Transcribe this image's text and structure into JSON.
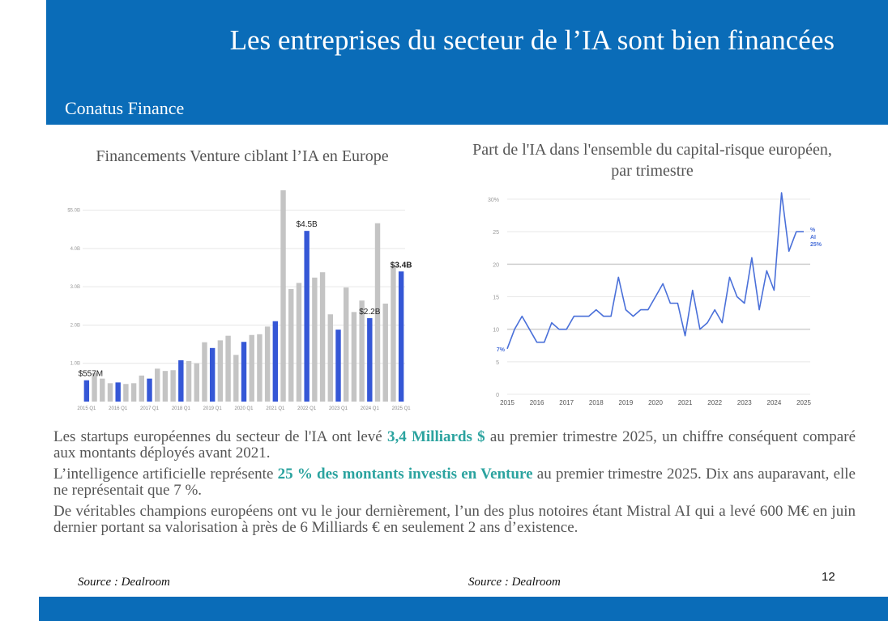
{
  "slide": {
    "title": "Les entreprises du secteur de l’IA sont bien financées",
    "subtitle": "Conatus Finance",
    "page_number": "12"
  },
  "paragraphs": [
    {
      "before": "Les startups européennes du secteur de l'IA ont levé ",
      "highlight": "3,4 Milliards $",
      "after": " au premier trimestre 2025, un chiffre conséquent comparé aux montants déployés avant 2021."
    },
    {
      "before": "L’intelligence artificielle représente ",
      "highlight": "25 % des montants investis en Venture",
      "after": " au premier trimestre 2025. Dix ans auparavant, elle ne représentait que 7 %."
    },
    {
      "before": "De véritables champions européens ont vu le jour dernièrement, l’un des plus notoires étant Mistral AI qui a levé 600 M€ en juin dernier portant sa valorisation à près de 6 Milliards € en seulement 2 ans d’existence.",
      "highlight": "",
      "after": ""
    }
  ],
  "sources": [
    "Source : Dealroom",
    "Source : Dealroom"
  ],
  "colors": {
    "header": "#0a6cb8",
    "highlight": "#2ba39f",
    "bar_q1": "#3557d6",
    "bar_other": "#c4c4c4",
    "line": "#4a70d9"
  },
  "chart_data": [
    {
      "type": "bar",
      "title": "Financements Venture ciblant l’IA en Europe",
      "xlabel": "",
      "ylabel": "",
      "ylim": [
        0,
        5.5
      ],
      "yticks": [
        1.0,
        2.0,
        3.0,
        4.0,
        5.0
      ],
      "ytick_labels": [
        "1.0B",
        "2.0B",
        "3.0B",
        "4.0B",
        "$5.0B"
      ],
      "x_tick_labels": [
        "2015 Q1",
        "2016 Q1",
        "2017 Q1",
        "2018 Q1",
        "2019 Q1",
        "2020 Q1",
        "2021 Q1",
        "2022 Q1",
        "2023 Q1",
        "2024 Q1",
        "2025 Q1"
      ],
      "grid": true,
      "legend": "none",
      "q1_highlighted": true,
      "values": [
        0.557,
        0.75,
        0.6,
        0.48,
        0.5,
        0.46,
        0.48,
        0.68,
        0.6,
        0.86,
        0.8,
        0.82,
        1.08,
        1.06,
        1.0,
        1.55,
        1.4,
        1.6,
        1.72,
        1.22,
        1.56,
        1.74,
        1.76,
        1.96,
        2.1,
        5.52,
        2.94,
        3.1,
        4.46,
        3.24,
        3.38,
        2.28,
        1.88,
        2.98,
        2.34,
        2.64,
        2.18,
        4.66,
        2.56,
        3.52,
        3.4
      ],
      "annotations": [
        {
          "label": "$557M",
          "index": 0,
          "bold": false
        },
        {
          "label": "$4.5B",
          "index": 28,
          "bold": false
        },
        {
          "label": "$2.2B",
          "index": 36,
          "bold": false
        },
        {
          "label": "$3.4B",
          "index": 40,
          "bold": true
        }
      ]
    },
    {
      "type": "line",
      "title": "Part de l'IA dans l'ensemble du capital-risque européen, par trimestre",
      "xlabel": "",
      "ylabel": "",
      "xlim": [
        2015,
        2025
      ],
      "ylim": [
        0,
        30
      ],
      "yticks": [
        0,
        5,
        10,
        15,
        20,
        25,
        30
      ],
      "ytick_labels": [
        "0",
        "5",
        "10",
        "15",
        "20",
        "25",
        "30%"
      ],
      "xticks": [
        2015,
        2016,
        2017,
        2018,
        2019,
        2020,
        2021,
        2022,
        2023,
        2024,
        2025
      ],
      "grid": true,
      "series": [
        {
          "name": "% AI",
          "x": [
            2015.0,
            2015.25,
            2015.5,
            2015.75,
            2016.0,
            2016.25,
            2016.5,
            2016.75,
            2017.0,
            2017.25,
            2017.5,
            2017.75,
            2018.0,
            2018.25,
            2018.5,
            2018.75,
            2019.0,
            2019.25,
            2019.5,
            2019.75,
            2020.0,
            2020.25,
            2020.5,
            2020.75,
            2021.0,
            2021.25,
            2021.5,
            2021.75,
            2022.0,
            2022.25,
            2022.5,
            2022.75,
            2023.0,
            2023.25,
            2023.5,
            2023.75,
            2024.0,
            2024.25,
            2024.5,
            2024.75,
            2025.0
          ],
          "values": [
            7,
            10,
            12,
            10,
            8,
            8,
            11,
            10,
            10,
            12,
            12,
            12,
            13,
            12,
            12,
            18,
            13,
            12,
            13,
            13,
            15,
            17,
            14,
            14,
            9,
            16,
            10,
            11,
            13,
            11,
            18,
            15,
            14,
            21,
            13,
            19,
            16,
            31,
            22,
            25,
            25
          ]
        }
      ],
      "annotations": [
        {
          "label": "7%",
          "index": 0
        },
        {
          "label": "25%",
          "index": 40
        }
      ],
      "legend_label_lines": [
        "%",
        "AI"
      ]
    }
  ]
}
